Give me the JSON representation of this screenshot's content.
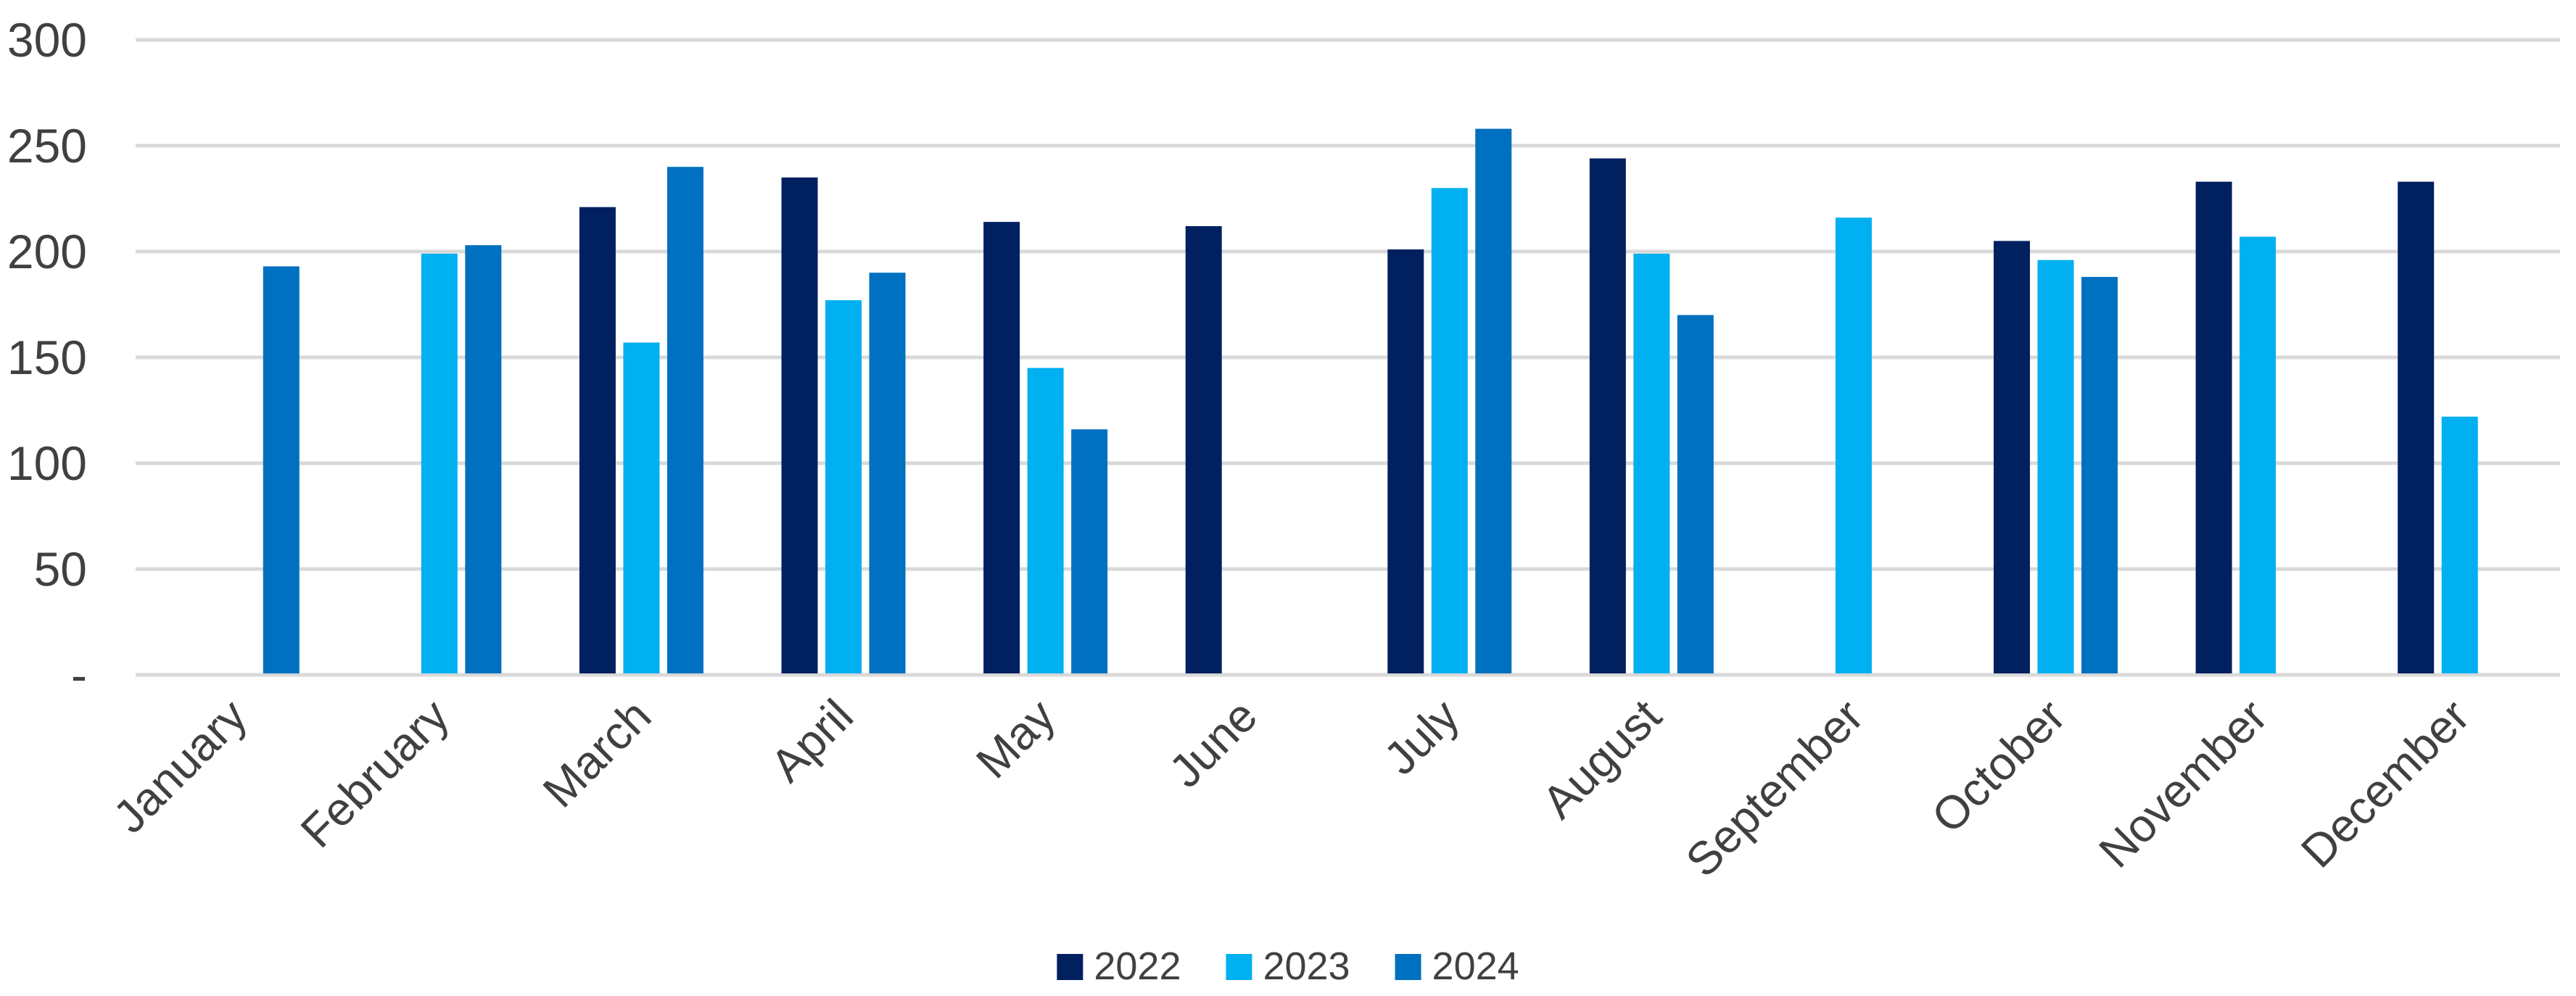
{
  "chart_data": {
    "type": "bar",
    "title": "",
    "categories": [
      "January",
      "February",
      "March",
      "April",
      "May",
      "June",
      "July",
      "August",
      "September",
      "October",
      "November",
      "December"
    ],
    "series": [
      {
        "name": "2022",
        "color": "#002060",
        "values": [
          null,
          null,
          221,
          235,
          214,
          212,
          201,
          244,
          null,
          205,
          233,
          233
        ]
      },
      {
        "name": "2023",
        "color": "#00B0F0",
        "values": [
          null,
          199,
          157,
          177,
          145,
          null,
          230,
          199,
          216,
          196,
          207,
          122
        ]
      },
      {
        "name": "2024",
        "color": "#0070C0",
        "values": [
          193,
          203,
          240,
          190,
          116,
          null,
          258,
          170,
          null,
          188,
          null,
          null
        ]
      }
    ],
    "y_axis": {
      "min": 0,
      "max": 300,
      "ticks": [
        {
          "value": 300,
          "label": "300"
        },
        {
          "value": 250,
          "label": "250"
        },
        {
          "value": 200,
          "label": "200"
        },
        {
          "value": 150,
          "label": "150"
        },
        {
          "value": 100,
          "label": "100"
        },
        {
          "value": 50,
          "label": "50"
        },
        {
          "value": 0,
          "label": "-"
        }
      ]
    },
    "xlabel": "",
    "ylabel": "",
    "grid": true,
    "legend_position": "bottom",
    "x_label_rotation_deg": 45
  },
  "colors": {
    "background": "#FFFFFF",
    "gridline": "#D9D9D9",
    "axis_text": "#404040",
    "legend_text": "#404040"
  }
}
